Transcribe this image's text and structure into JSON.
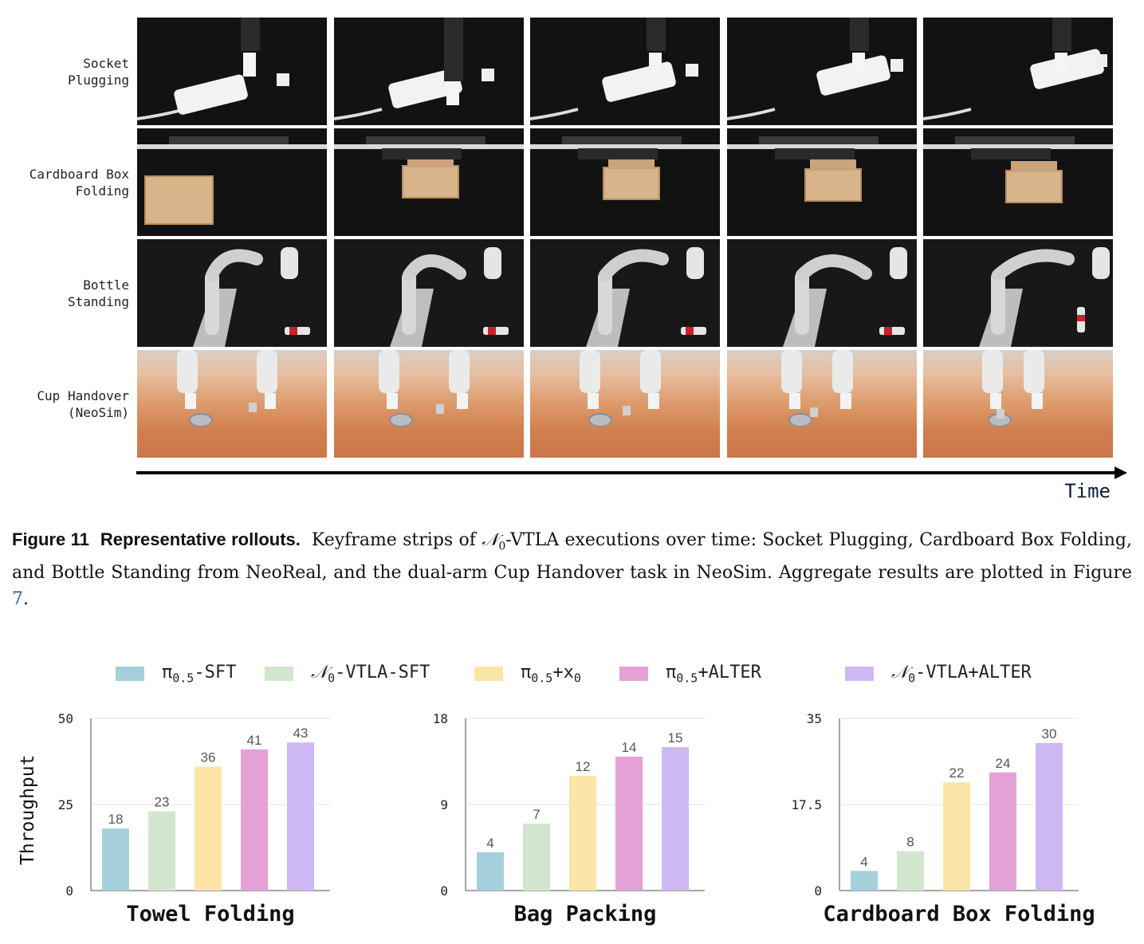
{
  "rollouts": {
    "rows": [
      {
        "label_lines": [
          "Socket",
          "Plugging"
        ],
        "frames": 5,
        "scene": "dark-desk"
      },
      {
        "label_lines": [
          "Cardboard Box",
          "Folding"
        ],
        "frames": 5,
        "scene": "dark-desk"
      },
      {
        "label_lines": [
          "Bottle",
          "Standing"
        ],
        "frames": 5,
        "scene": "robot-arm"
      },
      {
        "label_lines": [
          "Cup Handover",
          "(NeoSim)"
        ],
        "frames": 5,
        "scene": "wood-table"
      }
    ],
    "time_label": "Time"
  },
  "caption": {
    "figure_label": "Figure 11",
    "title": "Representative rollouts.",
    "text_before_model": "Keyframe strips of ",
    "model_symbol": "𝒩",
    "model_subscript": "0",
    "text_after_model": "-VTLA executions over time: Socket Plugging, Cardboard Box Folding, and Bottle Standing from NeoReal, and the dual-arm Cup Handover task in NeoSim. Aggregate results are plotted in Figure ",
    "figure_ref": "7",
    "text_end": "."
  },
  "legend": [
    {
      "prefix": "π",
      "sub": "0.5",
      "suffix": "-SFT",
      "color": "#a3d0db"
    },
    {
      "prefix": "𝒩",
      "sub": "0",
      "suffix": "-VTLA-SFT",
      "color": "#d2e6cd"
    },
    {
      "prefix": "π",
      "sub": "0.5",
      "suffix": "+x",
      "suffix_sub": "0",
      "color": "#fbe4a7"
    },
    {
      "prefix": "π",
      "sub": "0.5",
      "suffix": "+ALTER",
      "color": "#e3a1d6"
    },
    {
      "prefix": "𝒩",
      "sub": "0",
      "suffix": "-VTLA+ALTER",
      "color": "#cdb8f3"
    }
  ],
  "y_axis_label": "Throughput",
  "chart_data": [
    {
      "type": "bar",
      "title": "Towel Folding",
      "ylabel": "Throughput",
      "ylim": [
        0,
        50
      ],
      "yticks": [
        "0",
        "25",
        "50"
      ],
      "values": [
        18,
        23,
        36,
        41,
        43
      ],
      "value_labels": [
        "18",
        "23",
        "36",
        "41",
        "43"
      ],
      "grid": true
    },
    {
      "type": "bar",
      "title": "Bag Packing",
      "ylim": [
        0,
        18
      ],
      "yticks": [
        "0",
        "9",
        "18"
      ],
      "values": [
        4,
        7,
        12,
        14,
        15
      ],
      "value_labels": [
        "4",
        "7",
        "12",
        "14",
        "15"
      ],
      "grid": true
    },
    {
      "type": "bar",
      "title": "Cardboard Box Folding",
      "ylim": [
        0,
        35
      ],
      "yticks": [
        "0",
        "17.5",
        "35"
      ],
      "values": [
        4,
        8,
        22,
        24,
        30
      ],
      "value_labels": [
        "4",
        "8",
        "22",
        "24",
        "30"
      ],
      "grid": true
    }
  ],
  "bar_colors": [
    "#a3d0db",
    "#d2e6cd",
    "#fbe4a7",
    "#e3a1d6",
    "#cdb8f3"
  ]
}
